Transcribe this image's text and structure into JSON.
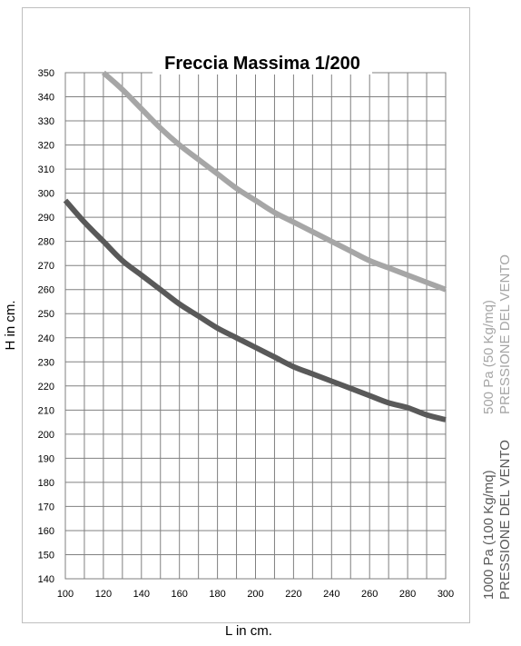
{
  "chart_data": {
    "type": "line",
    "title": "Freccia Massima 1/200",
    "xlabel": "L in cm.",
    "ylabel": "H  in cm.",
    "xlim": [
      100,
      300
    ],
    "ylim": [
      140,
      350
    ],
    "x_ticks": [
      100,
      120,
      140,
      160,
      180,
      200,
      220,
      240,
      260,
      280,
      300
    ],
    "y_ticks": [
      140,
      150,
      160,
      170,
      180,
      190,
      200,
      210,
      220,
      230,
      240,
      250,
      260,
      270,
      280,
      290,
      300,
      310,
      320,
      330,
      340,
      350
    ],
    "x_minor_step": 10,
    "grid": true,
    "legend_position": "right",
    "series": [
      {
        "label_line1": "500 Pa (50 Kg/mq)",
        "label_line2": "PRESSIONE DEL VENTO",
        "color": "#a6a6a6",
        "x": [
          120,
          130,
          140,
          150,
          160,
          170,
          180,
          190,
          200,
          210,
          220,
          230,
          240,
          250,
          260,
          270,
          280,
          290,
          300
        ],
        "y": [
          350,
          343,
          335,
          327,
          320,
          314,
          308,
          302,
          297,
          292,
          288,
          284,
          280,
          276,
          272,
          269,
          266,
          263,
          260
        ]
      },
      {
        "label_line1": "1000 Pa (100 Kg/mq)",
        "label_line2": "PRESSIONE DEL VENTO",
        "color": "#595959",
        "x": [
          100,
          110,
          120,
          130,
          140,
          150,
          160,
          170,
          180,
          190,
          200,
          210,
          220,
          230,
          240,
          250,
          260,
          270,
          280,
          290,
          300
        ],
        "y": [
          297,
          288,
          280,
          272,
          266,
          260,
          254,
          249,
          244,
          240,
          236,
          232,
          228,
          225,
          222,
          219,
          216,
          213,
          211,
          208,
          206
        ]
      }
    ]
  }
}
